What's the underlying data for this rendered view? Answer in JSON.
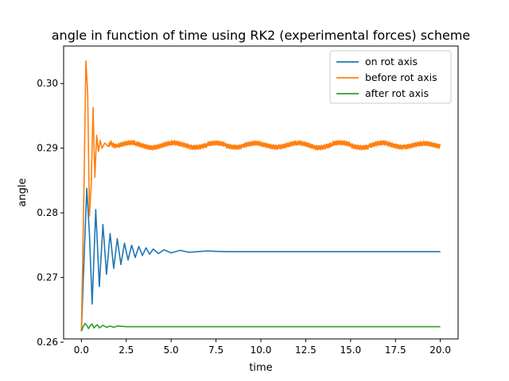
{
  "chart_data": {
    "type": "line",
    "title": "angle in function of time using RK2 (experimental forces) scheme",
    "xlabel": "time",
    "ylabel": "angle",
    "xlim": [
      -0.99,
      20.99
    ],
    "ylim": [
      0.2605,
      0.3058
    ],
    "xticks": [
      {
        "value": 0.0,
        "label": "0.0"
      },
      {
        "value": 2.5,
        "label": "2.5"
      },
      {
        "value": 5.0,
        "label": "5.0"
      },
      {
        "value": 7.5,
        "label": "7.5"
      },
      {
        "value": 10.0,
        "label": "10.0"
      },
      {
        "value": 12.5,
        "label": "12.5"
      },
      {
        "value": 15.0,
        "label": "15.0"
      },
      {
        "value": 17.5,
        "label": "17.5"
      },
      {
        "value": 20.0,
        "label": "20.0"
      }
    ],
    "yticks": [
      {
        "value": 0.26,
        "label": "0.26"
      },
      {
        "value": 0.27,
        "label": "0.27"
      },
      {
        "value": 0.28,
        "label": "0.28"
      },
      {
        "value": 0.29,
        "label": "0.29"
      },
      {
        "value": 0.3,
        "label": "0.30"
      }
    ],
    "grid": false,
    "legend_position": "top-right",
    "series": [
      {
        "name": "on rot axis",
        "color": "#1f77b4",
        "x": [
          0.0,
          0.15,
          0.3,
          0.45,
          0.6,
          0.8,
          1.0,
          1.2,
          1.4,
          1.6,
          1.8,
          2.0,
          2.2,
          2.4,
          2.6,
          2.8,
          3.0,
          3.2,
          3.4,
          3.6,
          3.8,
          4.0,
          4.3,
          4.6,
          5.0,
          5.5,
          6.0,
          7.0,
          8.0,
          10.0,
          15.0,
          20.0
        ],
        "y": [
          0.2617,
          0.273,
          0.2838,
          0.2766,
          0.2659,
          0.2805,
          0.2686,
          0.2782,
          0.2705,
          0.2768,
          0.2714,
          0.276,
          0.272,
          0.2753,
          0.2727,
          0.275,
          0.2731,
          0.2748,
          0.2734,
          0.2746,
          0.2736,
          0.2744,
          0.2737,
          0.2743,
          0.2738,
          0.2742,
          0.2739,
          0.2741,
          0.274,
          0.274,
          0.274,
          0.274
        ]
      },
      {
        "name": "before rot axis",
        "color": "#ff7f0e",
        "x": [
          0.0,
          0.15,
          0.25,
          0.35,
          0.45,
          0.55,
          0.65,
          0.75,
          0.85,
          0.95,
          1.05,
          1.15,
          1.3,
          1.5,
          1.7,
          2.0,
          3.0,
          4.0,
          5.0,
          6.0,
          7.0,
          8.0,
          9.0,
          10.0,
          11.0,
          12.0,
          13.0,
          14.0,
          15.0,
          16.0,
          17.0,
          18.0,
          19.0,
          20.0
        ],
        "y": [
          0.2617,
          0.285,
          0.3035,
          0.2985,
          0.2795,
          0.2845,
          0.2963,
          0.2855,
          0.292,
          0.2895,
          0.2912,
          0.29,
          0.2908,
          0.2903,
          0.2906,
          0.2905,
          0.2905,
          0.2904,
          0.2905,
          0.2905,
          0.2904,
          0.2905,
          0.2905,
          0.2904,
          0.2905,
          0.2905,
          0.2904,
          0.2905,
          0.2905,
          0.2904,
          0.2905,
          0.2905,
          0.2904,
          0.2905
        ],
        "noise_amplitude": 0.0007
      },
      {
        "name": "after rot axis",
        "color": "#2ca02c",
        "x": [
          0.0,
          0.1,
          0.2,
          0.3,
          0.4,
          0.5,
          0.6,
          0.7,
          0.8,
          0.9,
          1.0,
          1.2,
          1.4,
          1.6,
          1.8,
          2.0,
          2.5,
          3.0,
          4.0,
          6.0,
          10.0,
          15.0,
          20.0
        ],
        "y": [
          0.2617,
          0.2624,
          0.2629,
          0.2626,
          0.2621,
          0.2626,
          0.2628,
          0.2622,
          0.2625,
          0.2627,
          0.2622,
          0.2626,
          0.2623,
          0.2625,
          0.2623,
          0.2625,
          0.2624,
          0.2624,
          0.2624,
          0.2624,
          0.2624,
          0.2624,
          0.2624
        ]
      }
    ]
  }
}
